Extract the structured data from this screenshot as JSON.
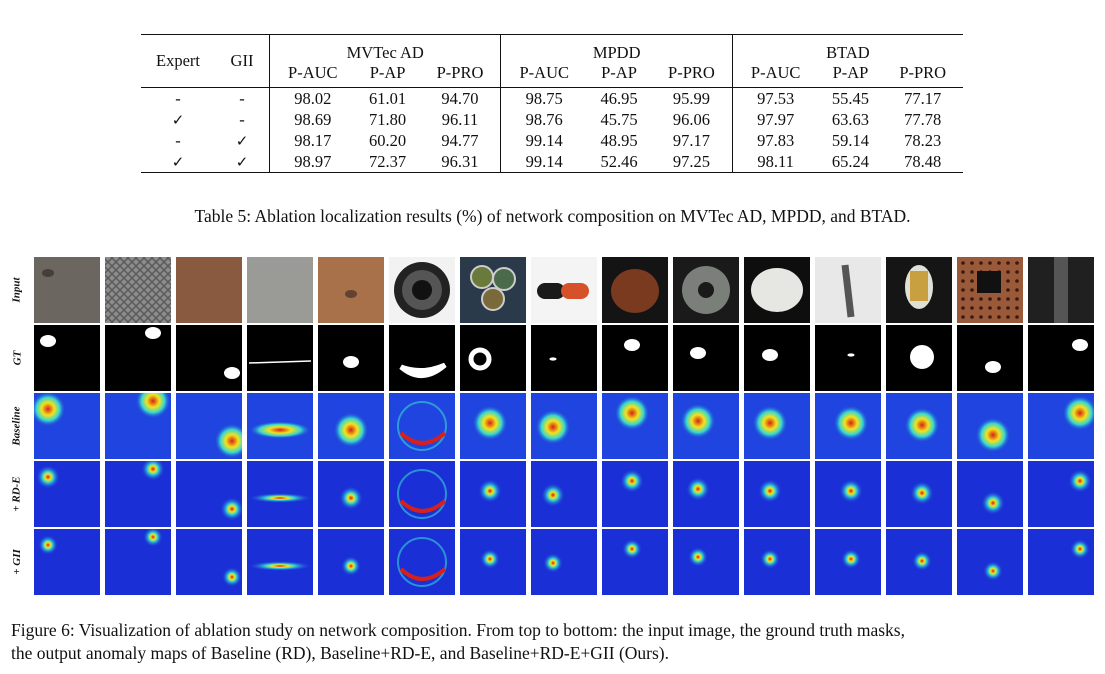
{
  "table": {
    "header": {
      "expert": "Expert",
      "gii": "GII",
      "groups": [
        "MVTec AD",
        "MPDD",
        "BTAD"
      ],
      "metrics": [
        "P-AUC",
        "P-AP",
        "P-PRO"
      ]
    },
    "rows": [
      {
        "expert": "-",
        "gii": "-",
        "values": [
          "98.02",
          "61.01",
          "94.70",
          "98.75",
          "46.95",
          "95.99",
          "97.53",
          "55.45",
          "77.17"
        ]
      },
      {
        "expert": "✓",
        "gii": "-",
        "values": [
          "98.69",
          "71.80",
          "96.11",
          "98.76",
          "45.75",
          "96.06",
          "97.97",
          "63.63",
          "77.78"
        ]
      },
      {
        "expert": "-",
        "gii": "✓",
        "values": [
          "98.17",
          "60.20",
          "94.77",
          "99.14",
          "48.95",
          "97.17",
          "97.83",
          "59.14",
          "78.23"
        ]
      },
      {
        "expert": "✓",
        "gii": "✓",
        "values": [
          "98.97",
          "72.37",
          "96.31",
          "99.14",
          "52.46",
          "97.25",
          "98.11",
          "65.24",
          "78.48"
        ]
      }
    ],
    "caption": "Table 5: Ablation localization results (%) of network composition on MVTec AD, MPDD, and BTAD."
  },
  "figure": {
    "row_labels": [
      "Input",
      "GT",
      "Baseline",
      "+ RD-E",
      "+ GII"
    ],
    "num_columns": 15,
    "caption_line1": "Figure 6: Visualization of ablation study on network composition. From top to bottom: the input image, the ground truth masks,",
    "caption_line2": "the output anomaly maps of Baseline (RD), Baseline+RD-E, and Baseline+RD-E+GII (Ours)."
  },
  "colors": {
    "text": "#111111",
    "heatmap_bg": "#1a2fd6",
    "heatmap_hot": "#d8201a",
    "mask_fg": "#ffffff",
    "mask_bg": "#000000"
  }
}
